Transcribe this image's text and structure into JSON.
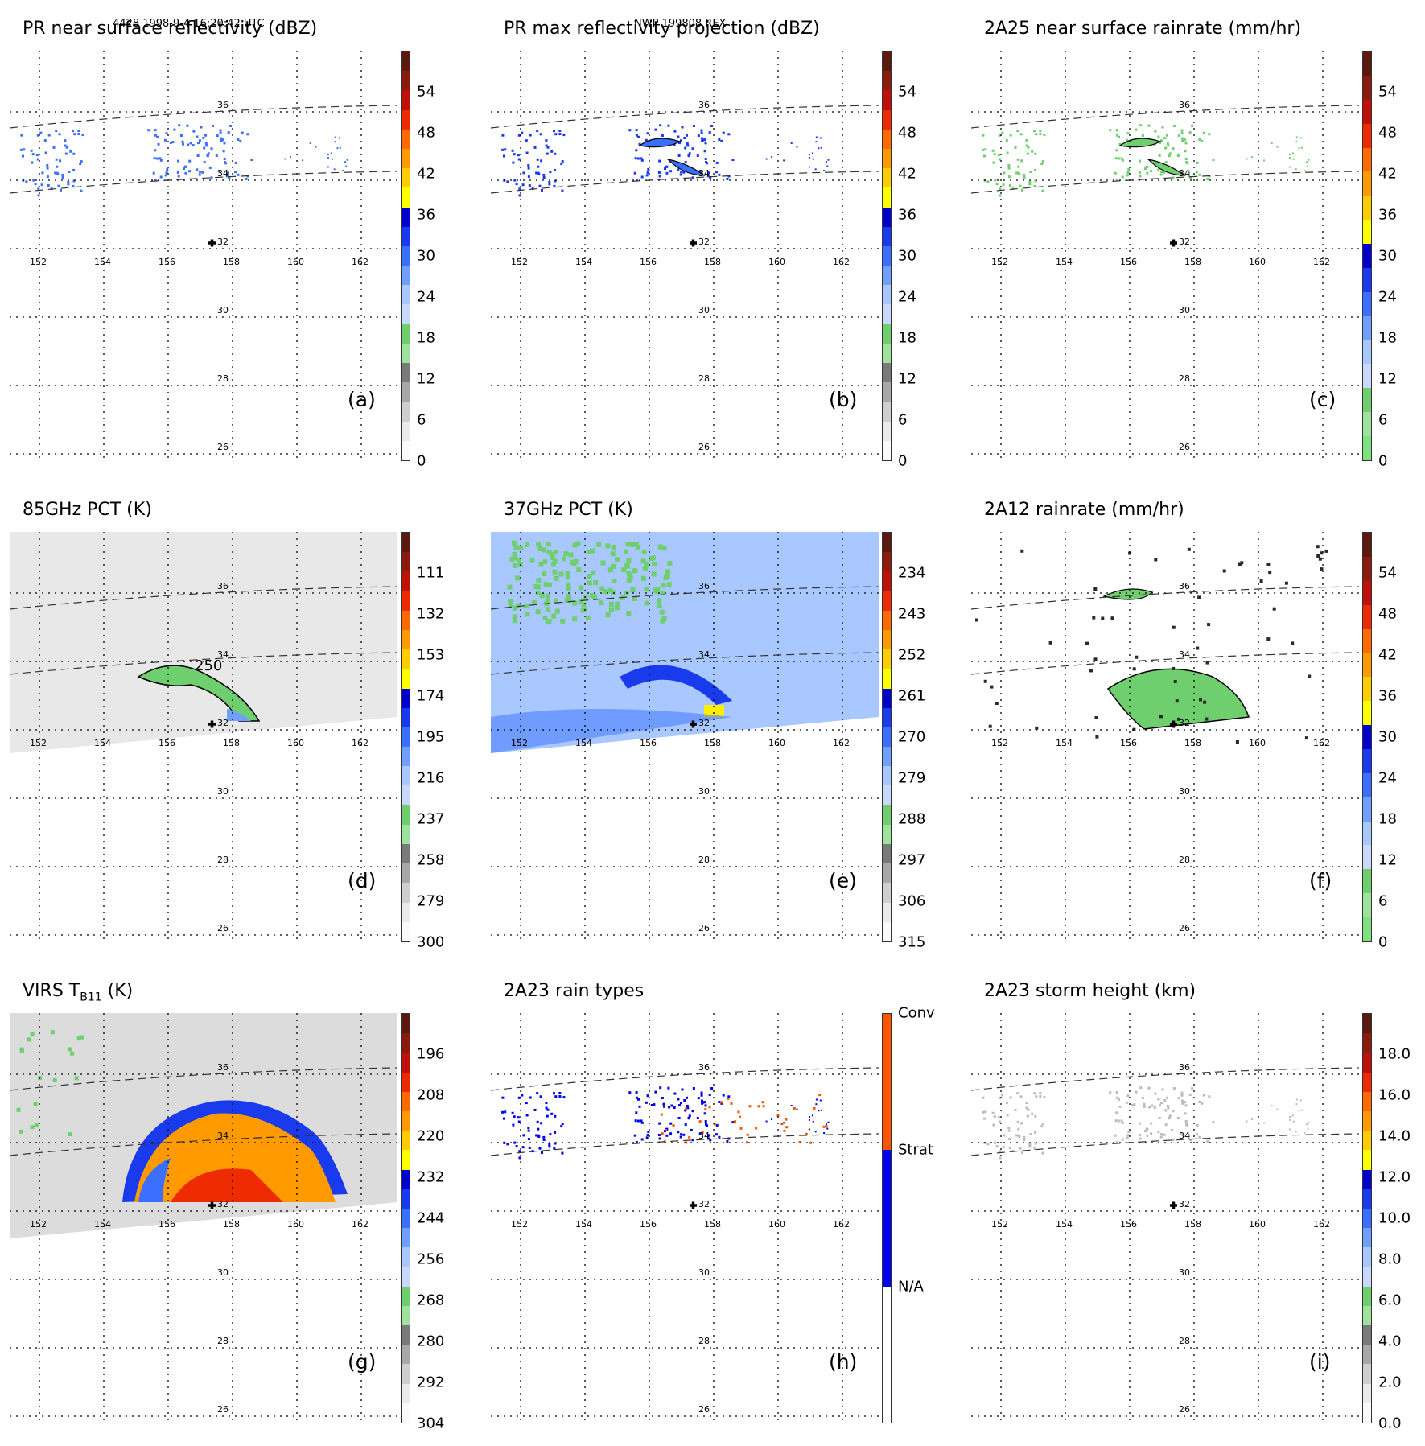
{
  "header": {
    "orbit_info": "4428 1998-9-4 16:20:42 UTC",
    "model_info": "NWP 199808 REX"
  },
  "map": {
    "lon_labels": [
      "152",
      "154",
      "156",
      "158",
      "160",
      "162"
    ],
    "lat_labels": [
      "36",
      "34",
      "32",
      "30",
      "28",
      "26"
    ]
  },
  "panels": [
    {
      "id": "a",
      "title": "PR near surface reflectivity (dBZ)",
      "label": "(a)",
      "colorbar": {
        "ticks": [
          "54",
          "48",
          "42",
          "36",
          "30",
          "24",
          "18",
          "12",
          "6",
          "0"
        ],
        "colors": [
          "#5a1a0f",
          "#8b1b0f",
          "#c0100a",
          "#ee2a00",
          "#ff6a00",
          "#ff9a00",
          "#ffcc00",
          "#ffff00",
          "#0000cc",
          "#1a3aee",
          "#3a6fff",
          "#6fa0ff",
          "#a8c8ff",
          "#c8d8ff",
          "#6fcf6f",
          "#9ee29e",
          "#7a7a7a",
          "#a8a8a8",
          "#cfcfcf",
          "#ebebeb",
          "#fafafa"
        ]
      }
    },
    {
      "id": "b",
      "title": "PR max reflectivity projection (dBZ)",
      "label": "(b)",
      "colorbar": {
        "ticks": [
          "54",
          "48",
          "42",
          "36",
          "30",
          "24",
          "18",
          "12",
          "6",
          "0"
        ],
        "colors": [
          "#5a1a0f",
          "#8b1b0f",
          "#c0100a",
          "#ee2a00",
          "#ff6a00",
          "#ff9a00",
          "#ffcc00",
          "#ffff00",
          "#0000cc",
          "#1a3aee",
          "#3a6fff",
          "#6fa0ff",
          "#a8c8ff",
          "#c8d8ff",
          "#6fcf6f",
          "#9ee29e",
          "#7a7a7a",
          "#a8a8a8",
          "#cfcfcf",
          "#ebebeb",
          "#fafafa"
        ]
      }
    },
    {
      "id": "c",
      "title": "2A25 near surface rainrate (mm/hr)",
      "label": "(c)",
      "colorbar": {
        "ticks": [
          "54",
          "48",
          "42",
          "36",
          "30",
          "24",
          "18",
          "12",
          "6",
          "0"
        ],
        "colors": [
          "#5a1a0f",
          "#8b1b0f",
          "#c0100a",
          "#ee2a00",
          "#ff6a00",
          "#ff9a00",
          "#ffcc00",
          "#ffff00",
          "#0000cc",
          "#1a3aee",
          "#3a6fff",
          "#6fa0ff",
          "#a8c8ff",
          "#c8d8ff",
          "#6fcf6f",
          "#9ee29e",
          "#7fe07f"
        ]
      }
    },
    {
      "id": "d",
      "title": "85GHz PCT (K)",
      "label": "(d)",
      "colorbar": {
        "ticks": [
          "111",
          "132",
          "153",
          "174",
          "195",
          "216",
          "237",
          "258",
          "279",
          "300"
        ],
        "colors": [
          "#5a1a0f",
          "#8b1b0f",
          "#c0100a",
          "#ee2a00",
          "#ff6a00",
          "#ff9a00",
          "#ffcc00",
          "#ffff00",
          "#0000cc",
          "#1a3aee",
          "#3a6fff",
          "#6fa0ff",
          "#a8c8ff",
          "#c8d8ff",
          "#6fcf6f",
          "#9ee29e",
          "#7a7a7a",
          "#a8a8a8",
          "#cfcfcf",
          "#ebebeb",
          "#fafafa"
        ]
      }
    },
    {
      "id": "e",
      "title": "37GHz PCT (K)",
      "label": "(e)",
      "colorbar": {
        "ticks": [
          "234",
          "243",
          "252",
          "261",
          "270",
          "279",
          "288",
          "297",
          "306",
          "315"
        ],
        "colors": [
          "#5a1a0f",
          "#8b1b0f",
          "#c0100a",
          "#ee2a00",
          "#ff6a00",
          "#ff9a00",
          "#ffcc00",
          "#ffff00",
          "#0000cc",
          "#1a3aee",
          "#3a6fff",
          "#6fa0ff",
          "#a8c8ff",
          "#c8d8ff",
          "#6fcf6f",
          "#9ee29e",
          "#7a7a7a",
          "#a8a8a8",
          "#cfcfcf",
          "#ebebeb",
          "#fafafa"
        ]
      }
    },
    {
      "id": "f",
      "title": "2A12 rainrate (mm/hr)",
      "label": "(f)",
      "colorbar": {
        "ticks": [
          "54",
          "48",
          "42",
          "36",
          "30",
          "24",
          "18",
          "12",
          "6",
          "0"
        ],
        "colors": [
          "#5a1a0f",
          "#8b1b0f",
          "#c0100a",
          "#ee2a00",
          "#ff6a00",
          "#ff9a00",
          "#ffcc00",
          "#ffff00",
          "#0000cc",
          "#1a3aee",
          "#3a6fff",
          "#6fa0ff",
          "#a8c8ff",
          "#c8d8ff",
          "#6fcf6f",
          "#9ee29e",
          "#7fe07f"
        ]
      }
    },
    {
      "id": "g",
      "title": "VIRS T",
      "title_sub": "B11",
      "title_suffix": " (K)",
      "label": "(g)",
      "colorbar": {
        "ticks": [
          "196",
          "208",
          "220",
          "232",
          "244",
          "256",
          "268",
          "280",
          "292",
          "304"
        ],
        "colors": [
          "#5a1a0f",
          "#8b1b0f",
          "#c0100a",
          "#ee2a00",
          "#ff6a00",
          "#ff9a00",
          "#ffcc00",
          "#ffff00",
          "#0000cc",
          "#1a3aee",
          "#3a6fff",
          "#6fa0ff",
          "#a8c8ff",
          "#c8d8ff",
          "#6fcf6f",
          "#9ee29e",
          "#7a7a7a",
          "#a8a8a8",
          "#cfcfcf",
          "#ebebeb",
          "#fafafa"
        ]
      }
    },
    {
      "id": "h",
      "title": "2A23 rain types",
      "label": "(h)",
      "colorbar": {
        "ticks": [
          "Conv",
          "Strat",
          "N/A"
        ],
        "colors": [
          "#ff5500",
          "#ff5500",
          "#ff5500",
          "#0000ee",
          "#0000ee",
          "#0000ee",
          "#ffffff",
          "#ffffff",
          "#ffffff"
        ]
      }
    },
    {
      "id": "i",
      "title": "2A23 storm height (km)",
      "label": "(i)",
      "colorbar": {
        "ticks": [
          "18.0",
          "16.0",
          "14.0",
          "12.0",
          "10.0",
          "8.0",
          "6.0",
          "4.0",
          "2.0",
          "0.0"
        ],
        "colors": [
          "#5a1a0f",
          "#8b1b0f",
          "#c0100a",
          "#ee2a00",
          "#ff6a00",
          "#ff9a00",
          "#ffcc00",
          "#ffff00",
          "#0000cc",
          "#1a3aee",
          "#3a6fff",
          "#6fa0ff",
          "#a8c8ff",
          "#c8d8ff",
          "#6fcf6f",
          "#9ee29e",
          "#7a7a7a",
          "#a8a8a8",
          "#cfcfcf",
          "#ebebeb",
          "#fafafa"
        ]
      }
    }
  ]
}
